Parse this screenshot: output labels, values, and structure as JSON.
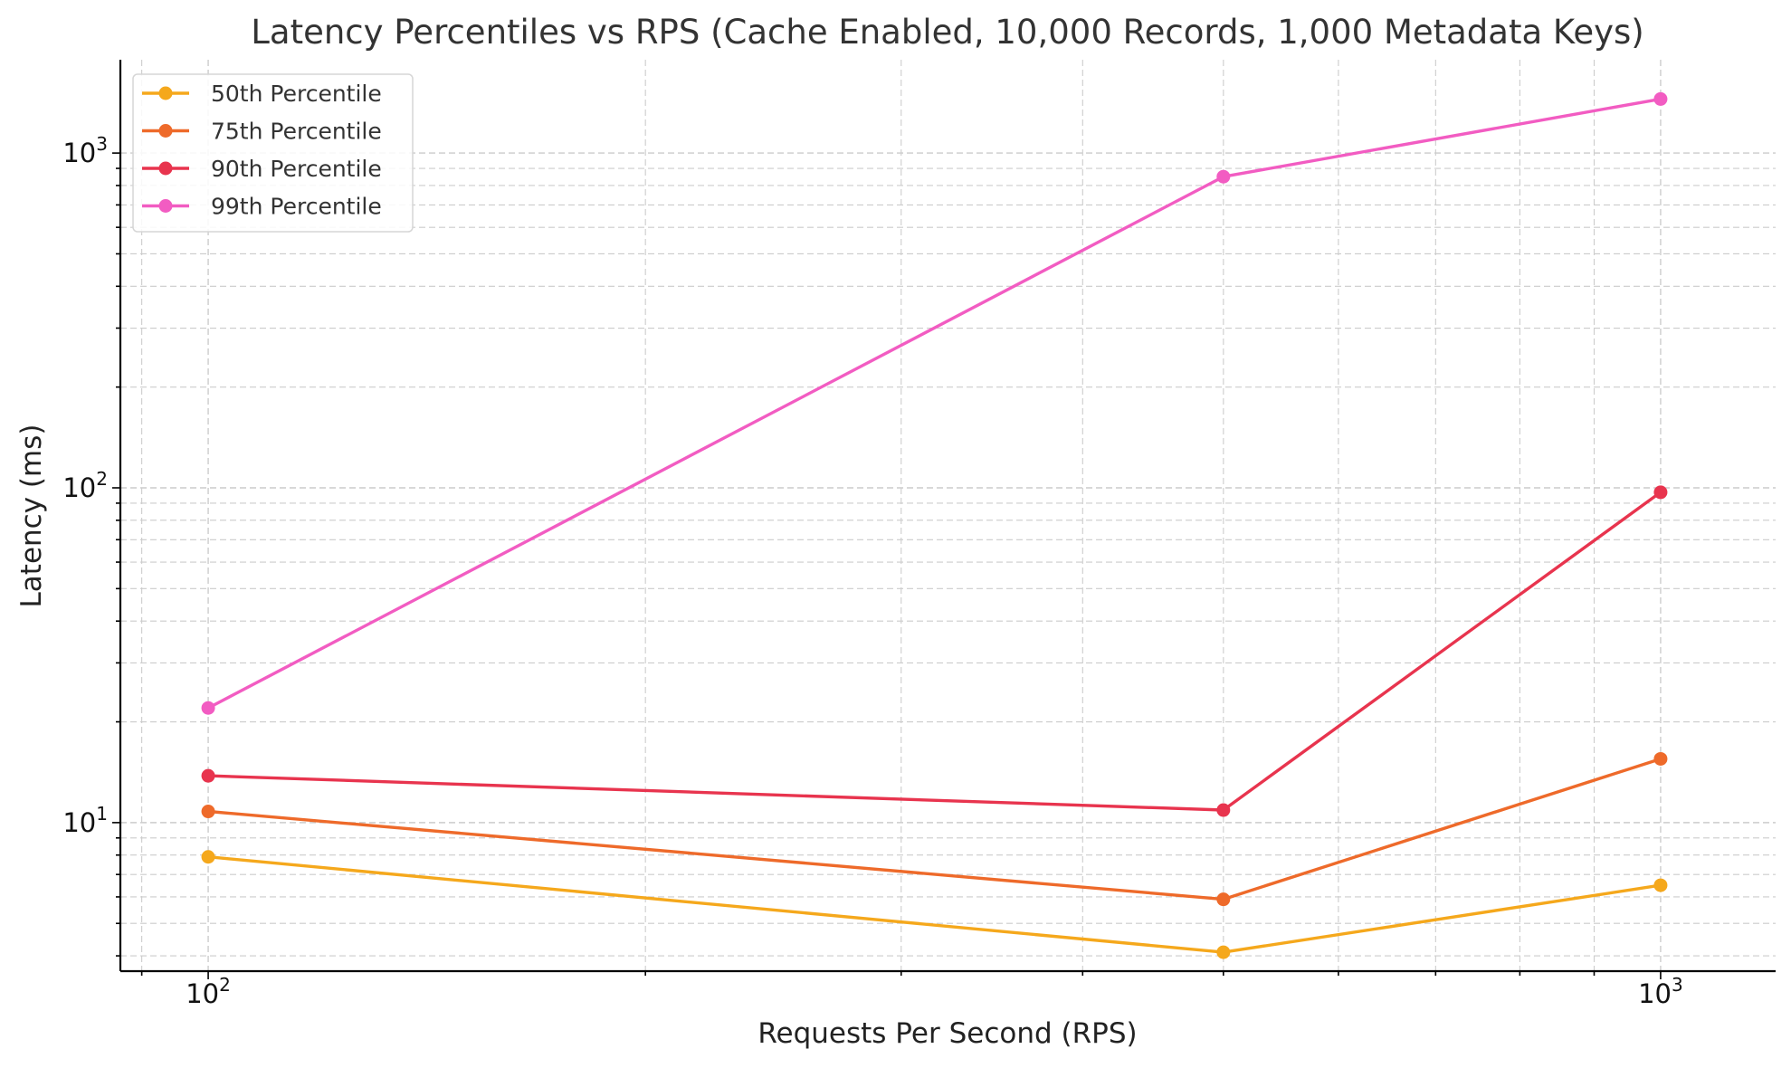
{
  "chart_data": {
    "type": "line",
    "title": "Latency Percentiles vs RPS (Cache Enabled, 10,000 Records, 1,000 Metadata Keys)",
    "xlabel": "Requests Per Second (RPS)",
    "ylabel": "Latency (ms)",
    "xscale": "log",
    "yscale": "log",
    "xlim": [
      87,
      1200
    ],
    "ylim": [
      3.6,
      1900
    ],
    "x": [
      100,
      500,
      1000
    ],
    "x_ticks": [
      {
        "base": "10",
        "exp": "2",
        "value": 100
      },
      {
        "base": "10",
        "exp": "3",
        "value": 1000
      }
    ],
    "y_ticks": [
      {
        "base": "10",
        "exp": "1",
        "value": 10
      },
      {
        "base": "10",
        "exp": "2",
        "value": 100
      },
      {
        "base": "10",
        "exp": "3",
        "value": 1000
      }
    ],
    "grid": true,
    "legend_position": "top-left",
    "series": [
      {
        "name": "50th Percentile",
        "color": "#F5A81C",
        "values": [
          7.9,
          4.1,
          6.5
        ]
      },
      {
        "name": "75th Percentile",
        "color": "#EE6A2A",
        "values": [
          10.8,
          5.9,
          15.5
        ]
      },
      {
        "name": "90th Percentile",
        "color": "#E8344E",
        "values": [
          13.8,
          10.9,
          97
        ]
      },
      {
        "name": "99th Percentile",
        "color": "#F25CC2",
        "values": [
          22,
          850,
          1450
        ]
      }
    ]
  }
}
